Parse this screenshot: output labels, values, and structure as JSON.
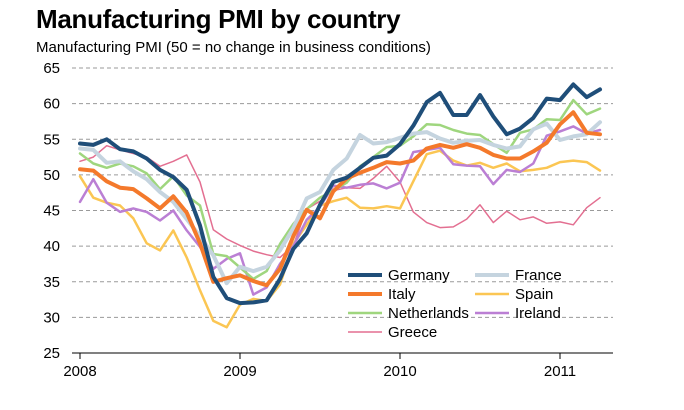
{
  "chart_data": {
    "type": "line",
    "title": "Manufacturing PMI by country",
    "ylabel": "Manufacturing PMI (50 =  no change in business conditions)",
    "xlabel": "",
    "ylim": [
      25,
      65
    ],
    "xlim": [
      2008.0,
      2011.33
    ],
    "yticks": [
      25,
      30,
      35,
      40,
      45,
      50,
      55,
      60,
      65
    ],
    "xticks": [
      {
        "value": 2008,
        "label": "2008"
      },
      {
        "value": 2009,
        "label": "2009"
      },
      {
        "value": 2010,
        "label": "2010"
      },
      {
        "value": 2011,
        "label": "2011"
      }
    ],
    "grid": true,
    "legend_placement": "bottom-right",
    "legend_columns": 2,
    "x_start": 2008.0,
    "x_step_months": 1,
    "series": [
      {
        "name": "Germany",
        "color": "#1f4e79",
        "width": 4,
        "values": [
          54.4,
          54.2,
          55.0,
          53.6,
          53.3,
          52.3,
          50.7,
          49.7,
          47.9,
          42.9,
          35.7,
          32.7,
          32.0,
          32.1,
          32.4,
          35.4,
          39.6,
          41.8,
          45.8,
          49.0,
          49.6,
          51.0,
          52.4,
          52.7,
          54.3,
          56.9,
          60.2,
          61.5,
          58.4,
          58.4,
          61.2,
          58.2,
          55.7,
          56.5,
          58.0,
          60.7,
          60.5,
          62.7,
          60.9,
          62.0
        ]
      },
      {
        "name": "France",
        "color": "#c5d4df",
        "width": 4,
        "values": [
          53.7,
          53.5,
          51.7,
          51.9,
          50.5,
          49.4,
          47.6,
          46.2,
          43.8,
          41.4,
          38.7,
          34.8,
          37.1,
          36.5,
          37.1,
          39.4,
          42.5,
          46.7,
          47.6,
          50.7,
          52.3,
          55.6,
          54.4,
          54.6,
          55.2,
          55.8,
          56.0,
          55.1,
          54.5,
          54.8,
          54.9,
          54.2,
          53.7,
          54.0,
          56.4,
          57.2,
          54.9,
          55.4,
          55.7,
          57.4
        ]
      },
      {
        "name": "Italy",
        "color": "#f4792b",
        "width": 4,
        "values": [
          50.8,
          50.6,
          49.1,
          48.2,
          48.0,
          46.7,
          45.3,
          47.0,
          44.7,
          40.4,
          35.0,
          35.5,
          35.9,
          35.1,
          34.5,
          36.8,
          41.4,
          45.1,
          43.9,
          47.7,
          49.5,
          50.3,
          51.0,
          51.8,
          51.6,
          52.0,
          53.7,
          54.2,
          53.8,
          54.3,
          53.8,
          52.8,
          52.3,
          52.3,
          53.3,
          54.5,
          57.1,
          58.8,
          55.9,
          55.7
        ]
      },
      {
        "name": "Spain",
        "color": "#fbc653",
        "width": 2.5,
        "values": [
          49.8,
          46.8,
          46.1,
          45.7,
          43.9,
          40.4,
          39.4,
          42.2,
          38.4,
          33.8,
          29.5,
          28.6,
          31.8,
          32.6,
          32.3,
          34.6,
          40.3,
          43.0,
          45.7,
          46.3,
          46.8,
          45.4,
          45.3,
          45.6,
          45.3,
          49.1,
          52.9,
          53.4,
          52.0,
          51.3,
          51.7,
          51.0,
          51.6,
          50.5,
          50.7,
          51.0,
          51.8,
          52.0,
          51.8,
          50.6
        ]
      },
      {
        "name": "Netherlands",
        "color": "#9fd67e",
        "width": 2.5,
        "values": [
          53.0,
          51.6,
          51.0,
          51.6,
          51.2,
          50.2,
          48.0,
          49.8,
          47.1,
          45.7,
          38.9,
          38.6,
          37.0,
          35.4,
          36.5,
          40.3,
          43.1,
          45.2,
          46.8,
          47.8,
          48.9,
          51.2,
          52.5,
          53.9,
          54.1,
          55.4,
          57.1,
          57.0,
          56.3,
          55.8,
          55.6,
          54.3,
          53.1,
          55.9,
          56.4,
          57.8,
          57.7,
          60.5,
          58.5,
          59.3
        ]
      },
      {
        "name": "Ireland",
        "color": "#bb7fd4",
        "width": 2.5,
        "values": [
          46.2,
          49.4,
          46.1,
          44.8,
          45.3,
          44.8,
          43.6,
          45.0,
          42.2,
          39.9,
          36.8,
          38.2,
          39.0,
          33.2,
          34.2,
          37.5,
          40.0,
          43.7,
          45.5,
          48.5,
          48.2,
          48.6,
          48.8,
          48.1,
          48.9,
          53.2,
          53.5,
          53.8,
          51.5,
          51.3,
          51.2,
          48.7,
          50.7,
          50.4,
          51.6,
          55.5,
          56.1,
          56.8,
          55.8,
          56.3
        ]
      },
      {
        "name": "Greece",
        "color": "#e36f91",
        "width": 1.5,
        "values": [
          51.9,
          52.5,
          54.1,
          53.5,
          53.0,
          52.5,
          51.2,
          51.9,
          52.8,
          49.0,
          42.3,
          41.0,
          40.1,
          39.3,
          38.8,
          38.4,
          40.1,
          45.2,
          46.3,
          47.8,
          48.2,
          48.1,
          49.5,
          51.2,
          49.0,
          44.8,
          43.3,
          42.6,
          42.7,
          43.8,
          45.8,
          43.3,
          44.9,
          43.7,
          44.1,
          43.2,
          43.4,
          43.0,
          45.4,
          46.8
        ]
      }
    ]
  }
}
